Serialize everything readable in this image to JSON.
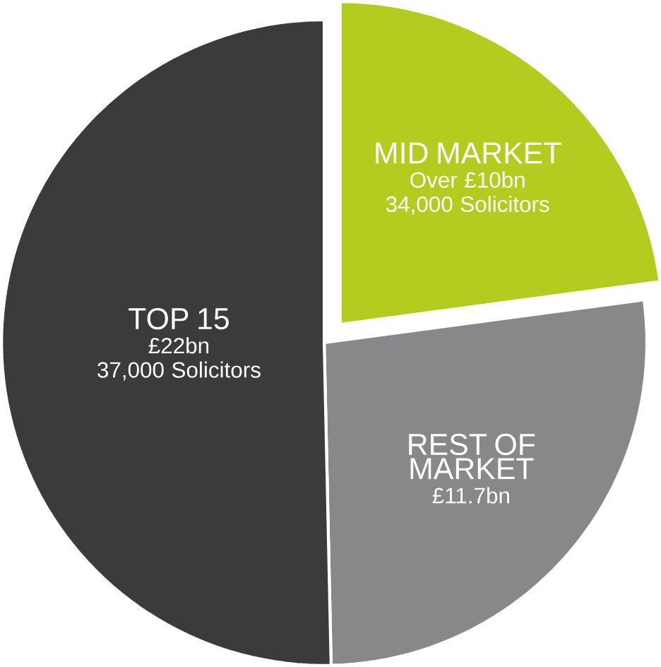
{
  "chart_data": {
    "type": "pie",
    "categories": [
      "MID MARKET",
      "REST OF MARKET",
      "TOP 15"
    ],
    "values": [
      10,
      11.7,
      22
    ],
    "colors": [
      "#b3cc1f",
      "#88888a",
      "#3b3b3d"
    ],
    "value_labels": [
      "Over £10bn",
      "£11.7bn",
      "£22bn"
    ],
    "annotations": [
      {
        "text": "34,000 Solicitors",
        "x": "MID MARKET"
      },
      {
        "text": "37,000 Solicitors",
        "x": "TOP 15"
      }
    ]
  }
}
